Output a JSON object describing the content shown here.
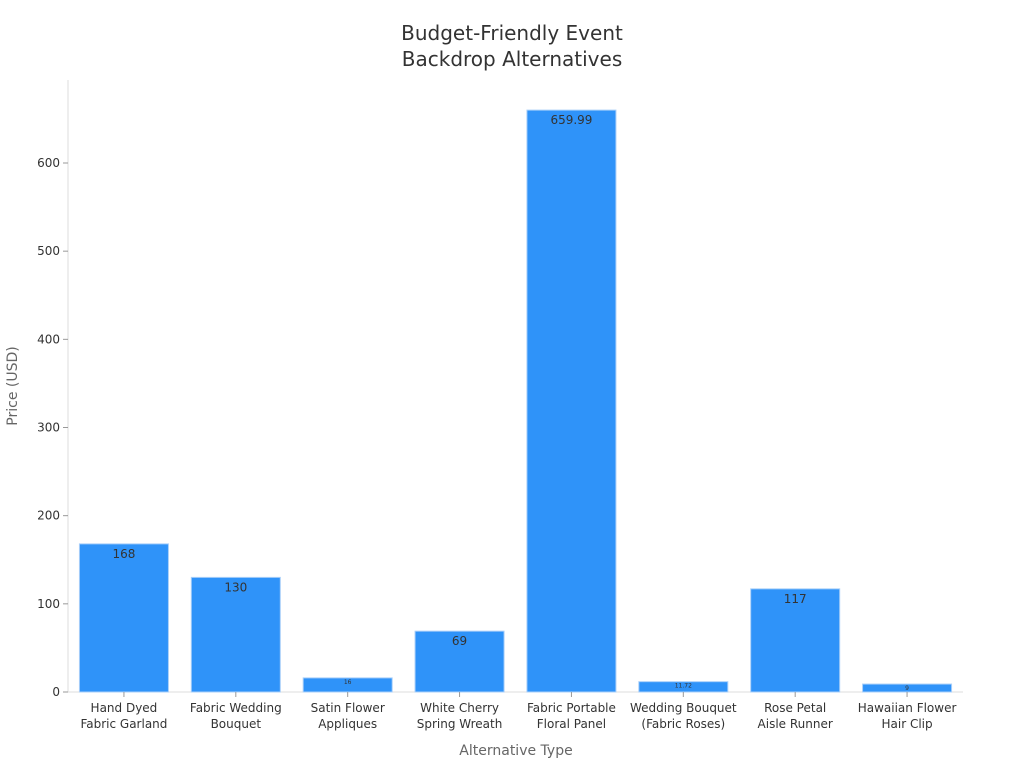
{
  "chart_data": {
    "type": "bar",
    "title": "Budget-Friendly Event Backdrop Alternatives",
    "title_lines": [
      "Budget-Friendly Event",
      "Backdrop Alternatives"
    ],
    "xlabel": "Alternative Type",
    "ylabel": "Price (USD)",
    "ylim": [
      0,
      700
    ],
    "yticks": [
      0,
      100,
      200,
      300,
      400,
      500,
      600
    ],
    "grid": false,
    "legend": "none",
    "bar_color": "#2f93f9",
    "categories": [
      [
        "Hand Dyed",
        "Fabric Garland"
      ],
      [
        "Fabric Wedding",
        "Bouquet"
      ],
      [
        "Satin Flower",
        "Appliques"
      ],
      [
        "White Cherry",
        "Spring Wreath"
      ],
      [
        "Fabric Portable",
        "Floral Panel"
      ],
      [
        "Wedding Bouquet",
        "(Fabric Roses)"
      ],
      [
        "Rose Petal",
        "Aisle Runner"
      ],
      [
        "Hawaiian Flower",
        "Hair Clip"
      ]
    ],
    "values": [
      168,
      130,
      16,
      69,
      659.99,
      11.72,
      117,
      9
    ],
    "value_labels": [
      "168",
      "130",
      "16",
      "69",
      "659.99",
      "11.72",
      "117",
      "9"
    ]
  }
}
